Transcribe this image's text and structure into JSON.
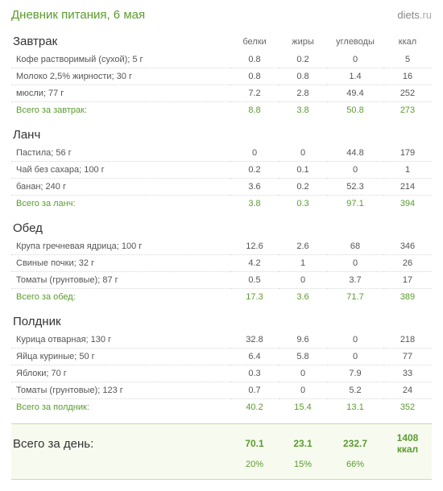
{
  "title": "Дневник питания, 6 мая",
  "brand": {
    "name": "diets",
    "tld": ".ru"
  },
  "columns": {
    "protein": "белки",
    "fat": "жиры",
    "carbs": "углеводы",
    "kcal": "ккал"
  },
  "meals": [
    {
      "name": "Завтрак",
      "items": [
        {
          "name": "Кофе растворимый (сухой); 5 г",
          "p": "0.8",
          "f": "0.2",
          "c": "0",
          "k": "5"
        },
        {
          "name": "Молоко 2,5% жирности; 30 г",
          "p": "0.8",
          "f": "0.8",
          "c": "1.4",
          "k": "16"
        },
        {
          "name": "мюсли; 77 г",
          "p": "7.2",
          "f": "2.8",
          "c": "49.4",
          "k": "252"
        }
      ],
      "total_label": "Всего за завтрак:",
      "total": {
        "p": "8.8",
        "f": "3.8",
        "c": "50.8",
        "k": "273"
      }
    },
    {
      "name": "Ланч",
      "items": [
        {
          "name": "Пастила; 56 г",
          "p": "0",
          "f": "0",
          "c": "44.8",
          "k": "179"
        },
        {
          "name": "Чай без сахара; 100 г",
          "p": "0.2",
          "f": "0.1",
          "c": "0",
          "k": "1"
        },
        {
          "name": "банан; 240 г",
          "p": "3.6",
          "f": "0.2",
          "c": "52.3",
          "k": "214"
        }
      ],
      "total_label": "Всего за ланч:",
      "total": {
        "p": "3.8",
        "f": "0.3",
        "c": "97.1",
        "k": "394"
      }
    },
    {
      "name": "Обед",
      "items": [
        {
          "name": "Крупа гречневая ядрица; 100 г",
          "p": "12.6",
          "f": "2.6",
          "c": "68",
          "k": "346"
        },
        {
          "name": "Свиные почки; 32 г",
          "p": "4.2",
          "f": "1",
          "c": "0",
          "k": "26"
        },
        {
          "name": "Томаты (грунтовые); 87 г",
          "p": "0.5",
          "f": "0",
          "c": "3.7",
          "k": "17"
        }
      ],
      "total_label": "Всего за обед:",
      "total": {
        "p": "17.3",
        "f": "3.6",
        "c": "71.7",
        "k": "389"
      }
    },
    {
      "name": "Полдник",
      "items": [
        {
          "name": "Курица отварная; 130 г",
          "p": "32.8",
          "f": "9.6",
          "c": "0",
          "k": "218"
        },
        {
          "name": "Яйца куриные; 50 г",
          "p": "6.4",
          "f": "5.8",
          "c": "0",
          "k": "77"
        },
        {
          "name": "Яблоки; 70 г",
          "p": "0.3",
          "f": "0",
          "c": "7.9",
          "k": "33"
        },
        {
          "name": "Томаты (грунтовые); 123 г",
          "p": "0.7",
          "f": "0",
          "c": "5.2",
          "k": "24"
        }
      ],
      "total_label": "Всего за полдник:",
      "total": {
        "p": "40.2",
        "f": "15.4",
        "c": "13.1",
        "k": "352"
      }
    }
  ],
  "grand": {
    "label": "Всего за день:",
    "p": "70.1",
    "f": "23.1",
    "c": "232.7",
    "k": "1408 ккал",
    "p_pct": "20%",
    "f_pct": "15%",
    "c_pct": "66%"
  },
  "colors": {
    "accent": "#5a9c2e",
    "row_border": "#d8d8d8",
    "grand_bg": "#f7fbef",
    "grand_border": "#c8dca8"
  }
}
